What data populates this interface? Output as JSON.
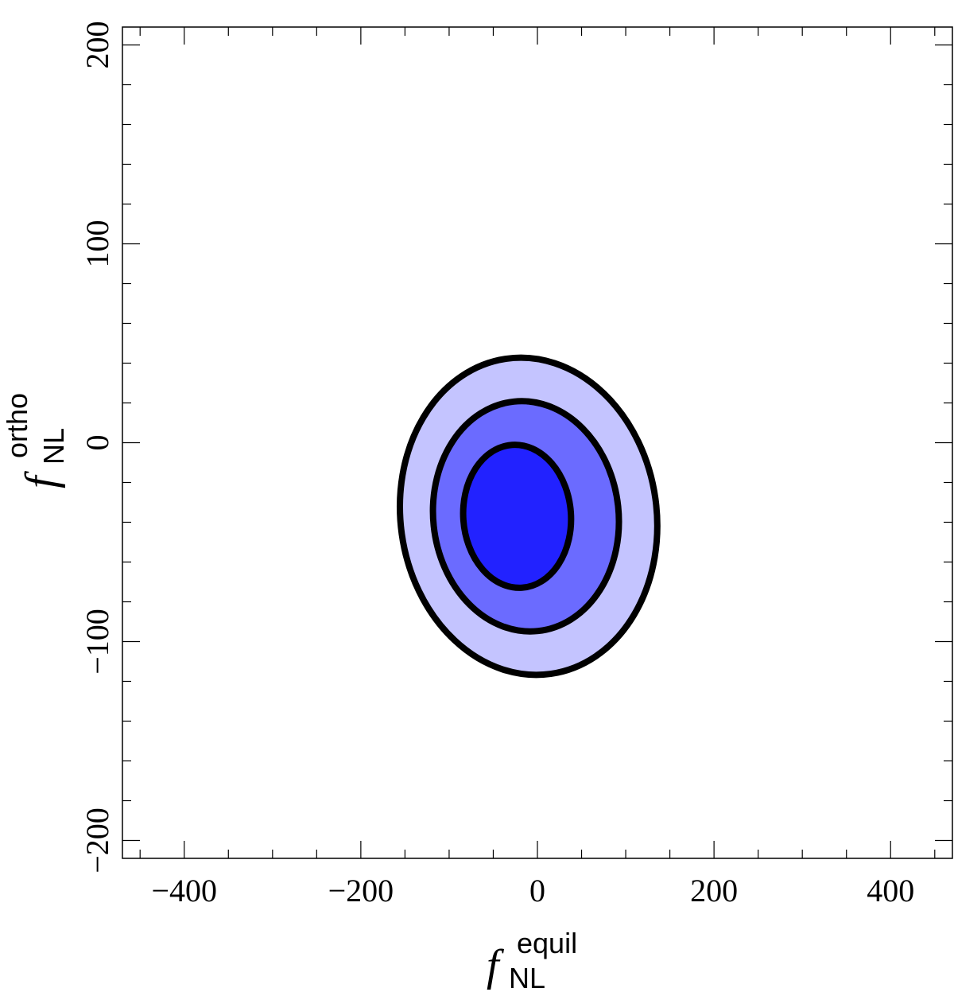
{
  "chart_data": {
    "type": "contour",
    "title": "",
    "x_axis": {
      "label_main": "f",
      "label_sub": "NL",
      "label_sup": "equil",
      "range": [
        -470,
        470
      ],
      "major_ticks": [
        -400,
        -200,
        0,
        200,
        400
      ],
      "major_tick_labels": [
        "−400",
        "−200",
        "0",
        "200",
        "400"
      ],
      "minor_step": 50
    },
    "y_axis": {
      "label_main": "f",
      "label_sub": "NL",
      "label_sup": "ortho",
      "range": [
        -209,
        209
      ],
      "major_ticks": [
        -200,
        -100,
        0,
        100,
        200
      ],
      "major_tick_labels": [
        "−200",
        "−100",
        "0",
        "100",
        "200"
      ],
      "minor_step": 20
    },
    "grid": false,
    "contours": [
      {
        "level": "outer",
        "center": [
          -10,
          -37
        ],
        "half_width": 145,
        "half_height": 80,
        "tilt_deg": -8,
        "fill": "#c4c4ff"
      },
      {
        "level": "middle",
        "center": [
          -13,
          -37
        ],
        "half_width": 105,
        "half_height": 58,
        "tilt_deg": -6,
        "fill": "#6b6bff"
      },
      {
        "level": "inner",
        "center": [
          -23,
          -37
        ],
        "half_width": 61,
        "half_height": 36,
        "tilt_deg": -4,
        "fill": "#2222ff"
      }
    ]
  }
}
